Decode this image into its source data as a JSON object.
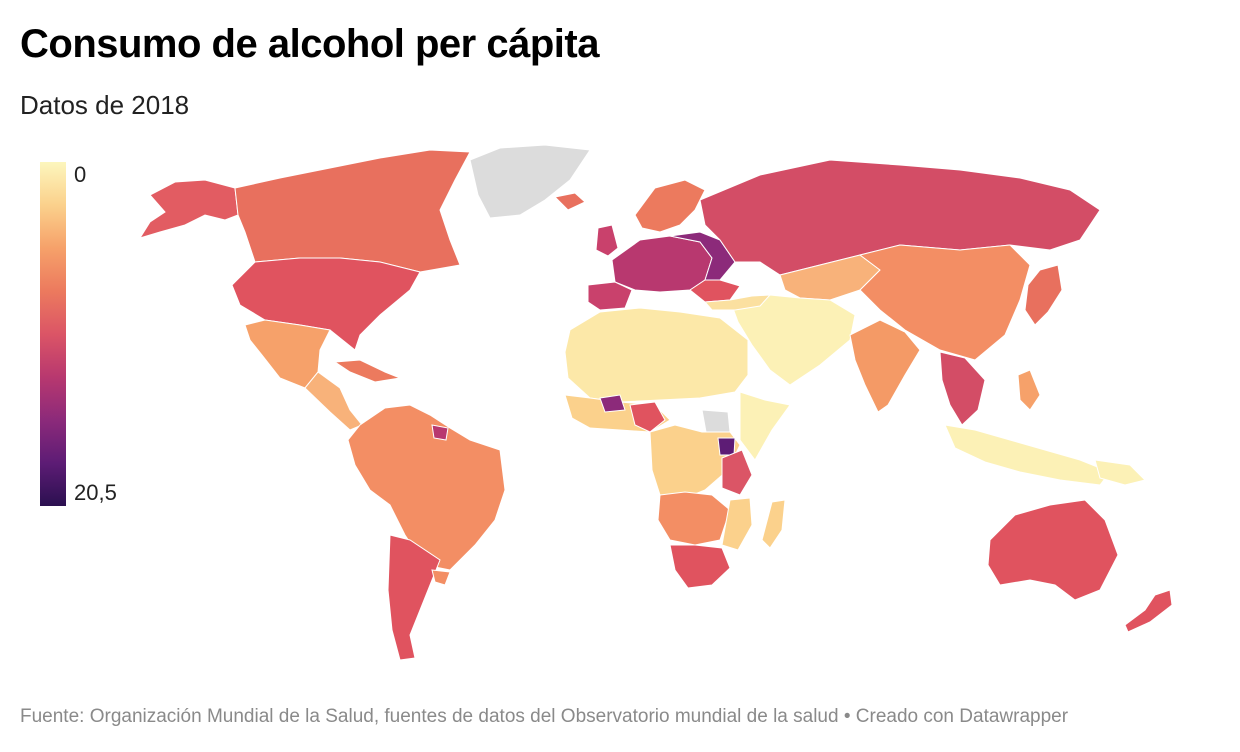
{
  "header": {
    "title": "Consumo de alcohol per cápita",
    "subtitle": "Datos de 2018"
  },
  "legend": {
    "min_label": "0",
    "max_label": "20,5",
    "gradient_colors": [
      "#fcf6bd",
      "#fbd18c",
      "#f6a16a",
      "#ec7a5e",
      "#db5566",
      "#b8386f",
      "#8c2a7a",
      "#5d1c75",
      "#2b1050"
    ]
  },
  "map": {
    "no_data_color": "#dcdcdc"
  },
  "footer": {
    "source": "Fuente: Organización Mundial de la Salud, fuentes de datos del Observatorio mundial de la salud • Creado con Datawrapper"
  }
}
